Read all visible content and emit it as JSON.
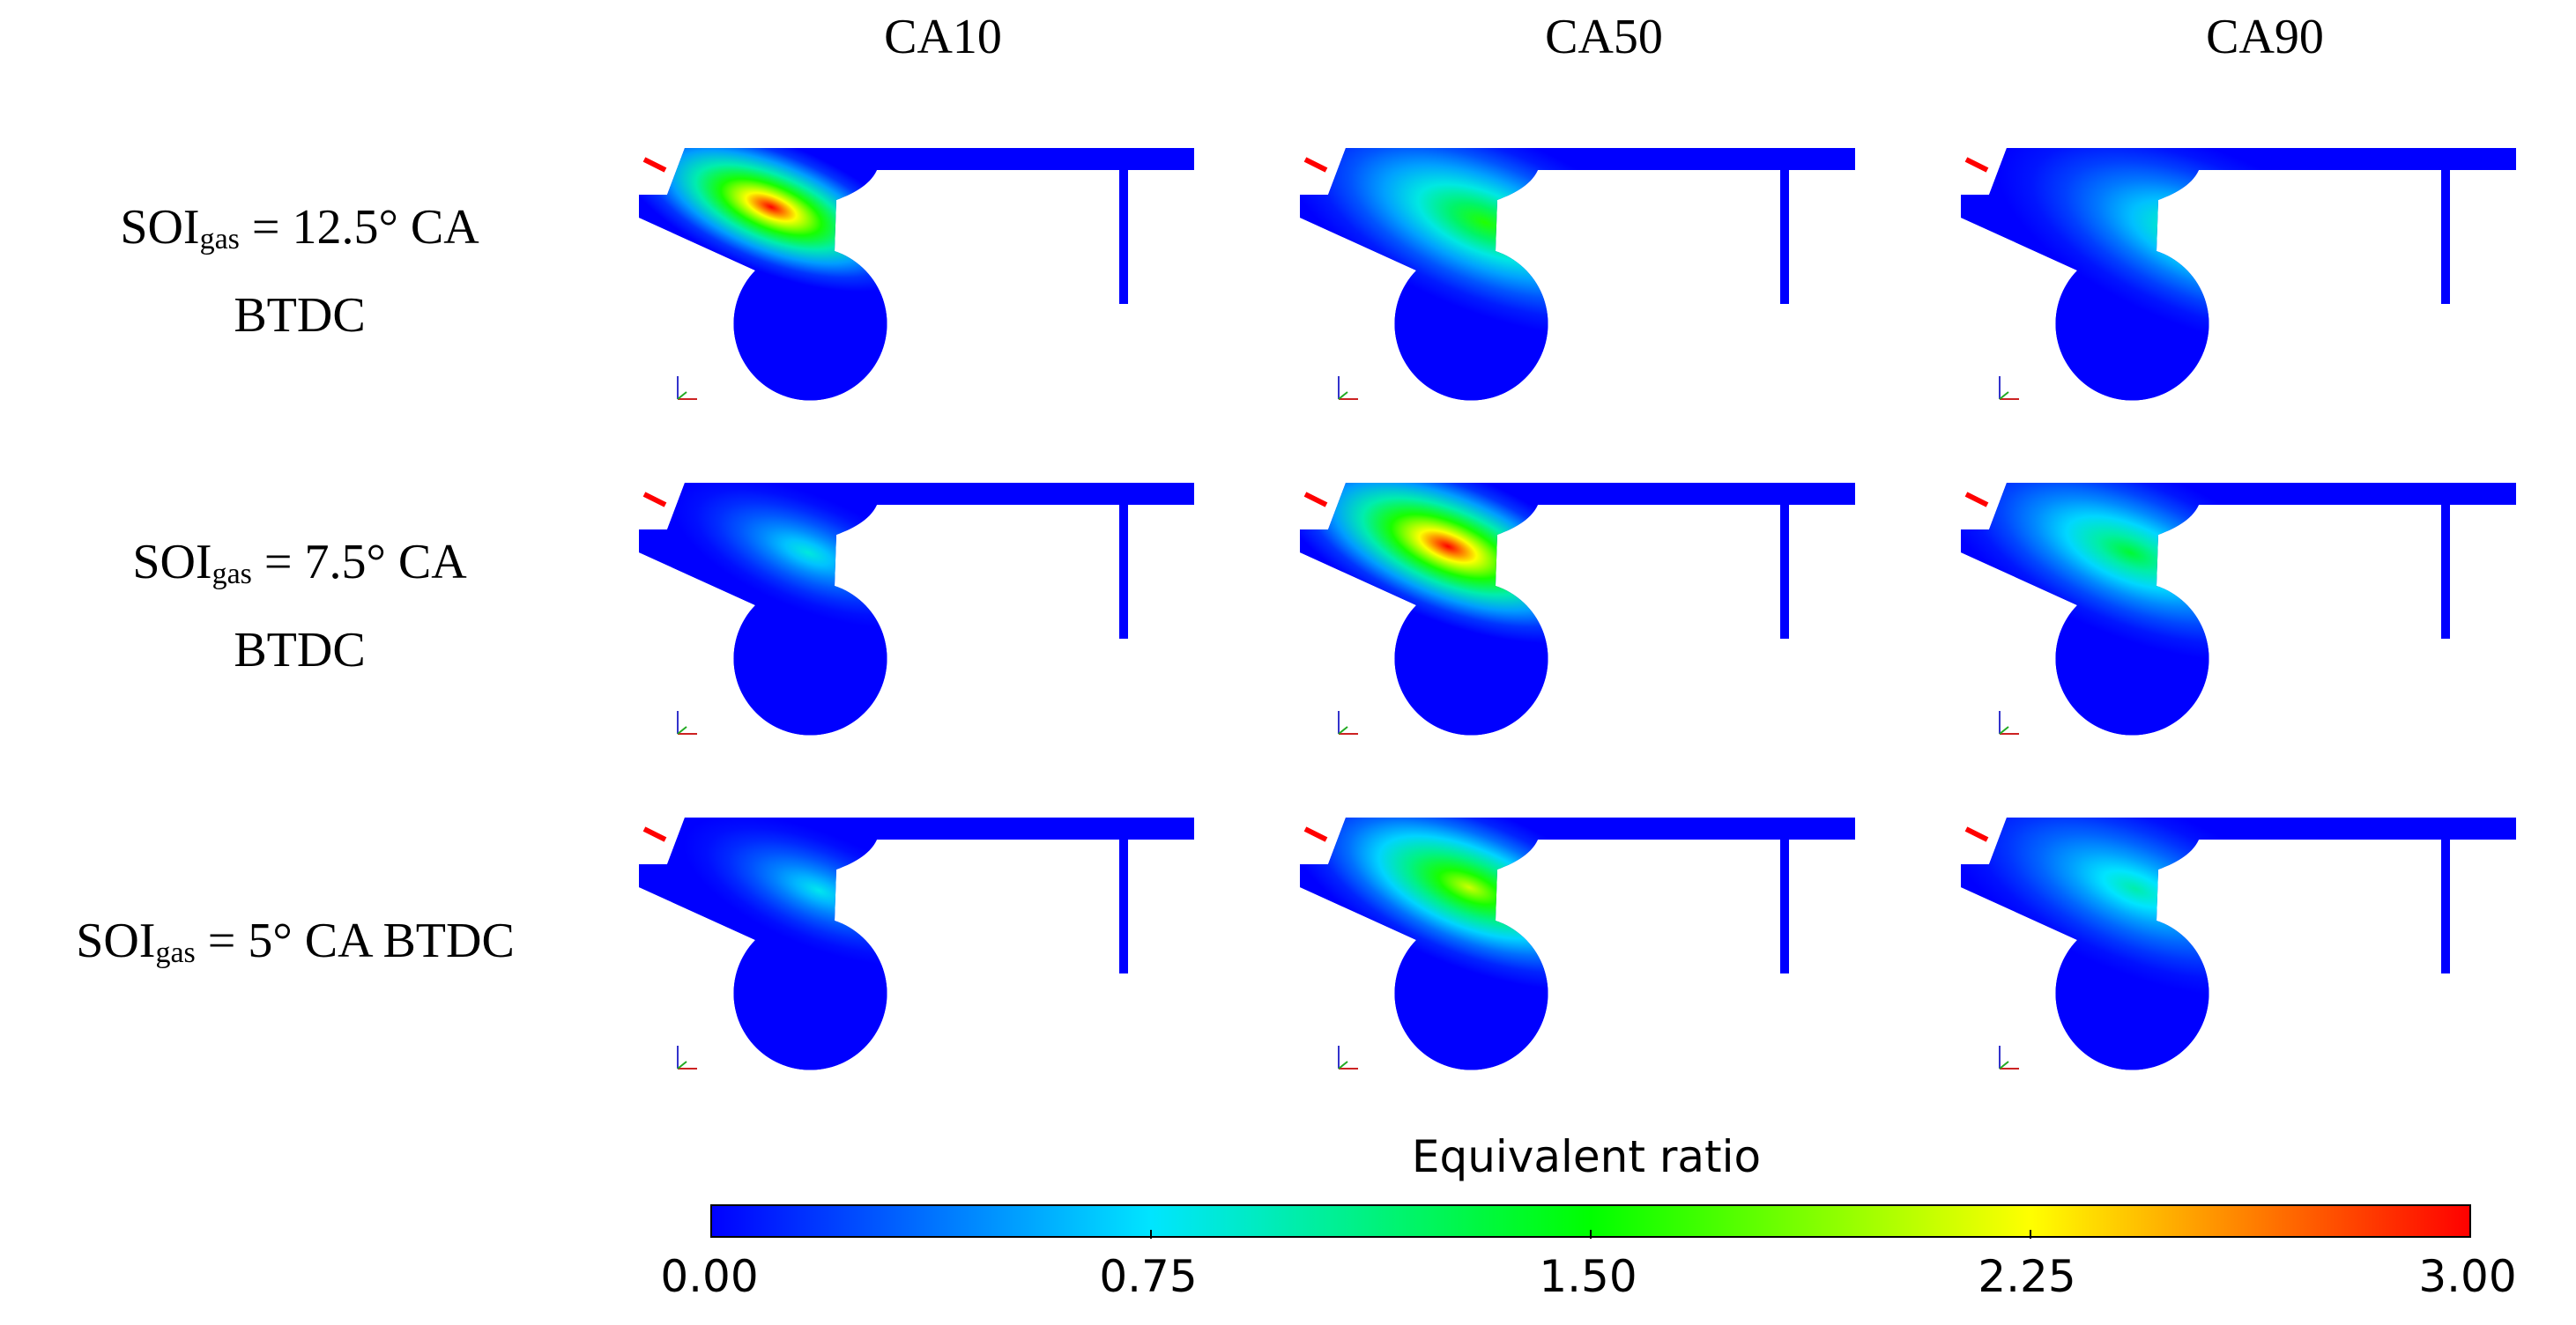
{
  "columns": [
    "CA10",
    "CA50",
    "CA90"
  ],
  "rows": [
    {
      "prefix": "SOI",
      "sub": "gas",
      "line1": " = 12.5° CA",
      "line2": "BTDC"
    },
    {
      "prefix": "SOI",
      "sub": "gas",
      "line1": " = 7.5° CA",
      "line2": "BTDC"
    },
    {
      "prefix": "SOI",
      "sub": "gas",
      "line1": " = 5° CA BTDC",
      "line2": ""
    }
  ],
  "panels": [
    [
      {
        "level": 3.0,
        "spread": 0.3,
        "shift": 0.0
      },
      {
        "level": 1.6,
        "spread": 0.55,
        "shift": 0.5
      },
      {
        "level": 1.2,
        "spread": 0.55,
        "shift": 1.0
      }
    ],
    [
      {
        "level": 0.85,
        "spread": 0.22,
        "shift": 0.35
      },
      {
        "level": 3.0,
        "spread": 0.4,
        "shift": 0.15
      },
      {
        "level": 1.35,
        "spread": 0.5,
        "shift": 0.35
      }
    ],
    [
      {
        "level": 0.8,
        "spread": 0.22,
        "shift": 0.45
      },
      {
        "level": 2.1,
        "spread": 0.45,
        "shift": 0.35
      },
      {
        "level": 1.0,
        "spread": 0.5,
        "shift": 0.4
      }
    ]
  ],
  "legend": {
    "title": "Equivalent ratio",
    "ticks": [
      "0.00",
      "0.75",
      "1.50",
      "2.25",
      "3.00"
    ],
    "range": [
      0,
      3.0
    ],
    "colors": [
      "#0000ff",
      "#00e5ff",
      "#00ff00",
      "#ffff00",
      "#ff0000"
    ]
  },
  "domain_color": "#0000ff",
  "injector_color": "#ff0000"
}
